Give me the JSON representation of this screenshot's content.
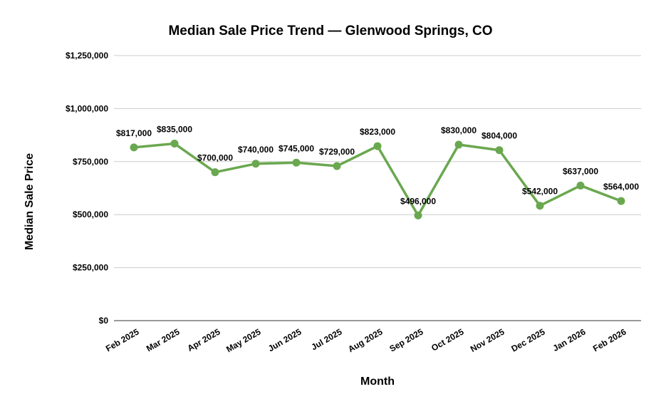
{
  "chart_data": {
    "type": "line",
    "title": "Median Sale Price Trend — Glenwood Springs, CO",
    "xlabel": "Month",
    "ylabel": "Median Sale Price",
    "categories": [
      "Feb 2025",
      "Mar 2025",
      "Apr 2025",
      "May 2025",
      "Jun 2025",
      "Jul 2025",
      "Aug 2025",
      "Sep 2025",
      "Oct 2025",
      "Nov 2025",
      "Dec 2025",
      "Jan 2026",
      "Feb 2026"
    ],
    "values": [
      817000,
      835000,
      700000,
      740000,
      745000,
      729000,
      823000,
      496000,
      830000,
      804000,
      542000,
      637000,
      564000
    ],
    "data_labels": [
      "$817,000",
      "$835,000",
      "$700,000",
      "$740,000",
      "$745,000",
      "$729,000",
      "$823,000",
      "$496,000",
      "$830,000",
      "$804,000",
      "$542,000",
      "$637,000",
      "$564,000"
    ],
    "ylim": [
      0,
      1250000
    ],
    "yticks": [
      0,
      250000,
      500000,
      750000,
      1000000,
      1250000
    ],
    "ytick_labels": [
      "$0",
      "$250,000",
      "$500,000",
      "$750,000",
      "$1,000,000",
      "$1,250,000"
    ],
    "grid": true,
    "legend": "none",
    "colors": {
      "series": "#6aa84f",
      "grid": "#cccccc",
      "axis": "#333333"
    }
  }
}
